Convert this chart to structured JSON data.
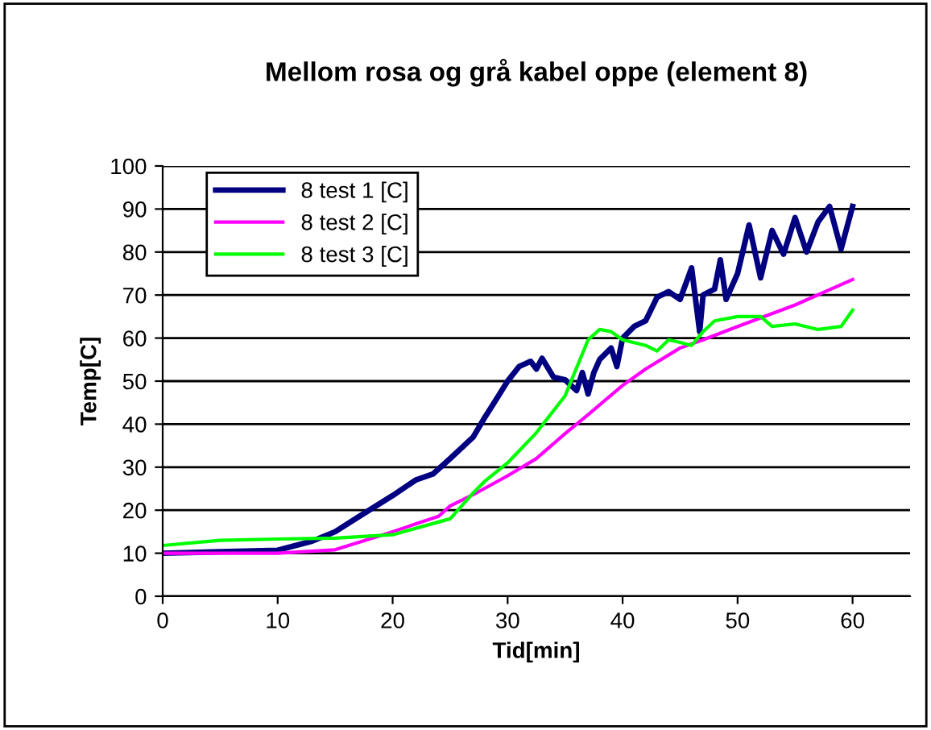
{
  "chart_data": {
    "type": "line",
    "title": "Mellom rosa og grå kabel oppe (element 8)",
    "xlabel": "Tid[min]",
    "ylabel": "Temp[C]",
    "xlim": [
      0,
      65
    ],
    "xticks": [
      0,
      10,
      20,
      30,
      40,
      50,
      60
    ],
    "ylim": [
      0,
      100
    ],
    "yticks": [
      0,
      10,
      20,
      30,
      40,
      50,
      60,
      70,
      80,
      90,
      100
    ],
    "grid": "y",
    "legend": "top left",
    "line_style": "solid",
    "marker": "none",
    "series": [
      {
        "name": "8 test 1 [C]",
        "color": "#000080",
        "x": [
          0,
          10,
          13,
          15,
          17,
          20,
          22,
          23.5,
          25,
          27,
          28,
          29,
          30,
          31,
          32,
          32.5,
          33,
          34,
          35,
          36,
          36.5,
          37,
          37.5,
          38,
          39,
          39.5,
          40,
          41,
          42,
          43,
          44,
          45,
          46,
          46.7,
          47,
          48,
          48.5,
          49,
          50,
          51,
          52,
          53,
          54,
          55,
          56,
          57,
          58,
          59,
          60
        ],
        "values": [
          10,
          10.7,
          12.8,
          15,
          18.4,
          23.4,
          27,
          28.4,
          32,
          37,
          41.5,
          45.7,
          50,
          53.4,
          54.6,
          52.8,
          55.3,
          50.9,
          50.3,
          47.8,
          52,
          47,
          52,
          55,
          57.7,
          53.4,
          60,
          62.7,
          64,
          69.5,
          70.8,
          69,
          76.3,
          61.5,
          70,
          71.4,
          78.2,
          69,
          75,
          86.3,
          74,
          85,
          79.5,
          88,
          80,
          87,
          90.6,
          80.7,
          90.6
        ]
      },
      {
        "name": "8 test 2 [C]",
        "color": "#ff00ff",
        "x": [
          0,
          10,
          15,
          20,
          22,
          24,
          25,
          27,
          30,
          32.5,
          35,
          37,
          40,
          42,
          45,
          47,
          50,
          55,
          60
        ],
        "values": [
          10,
          10,
          10.8,
          15,
          16.8,
          18.6,
          21,
          23.6,
          28,
          32,
          37.8,
          42.2,
          49,
          52.8,
          57.7,
          59.6,
          62.7,
          67.7,
          73.6
        ]
      },
      {
        "name": "8 test 3 [C]",
        "color": "#00ff00",
        "x": [
          0,
          5,
          10,
          15,
          20,
          25,
          27,
          28,
          30,
          32.5,
          35,
          37,
          38,
          39,
          40,
          42,
          43,
          44,
          45,
          46,
          47,
          48,
          50,
          52,
          53,
          55,
          57,
          59,
          60
        ],
        "values": [
          11.8,
          13,
          13.3,
          13.5,
          14.3,
          18,
          24,
          26.7,
          31,
          38,
          46.6,
          59.6,
          62,
          61.5,
          59.6,
          58.3,
          57,
          59.6,
          59,
          58.3,
          61.5,
          64,
          65,
          65,
          62.7,
          63.3,
          62,
          62.7,
          66.5
        ]
      }
    ]
  }
}
